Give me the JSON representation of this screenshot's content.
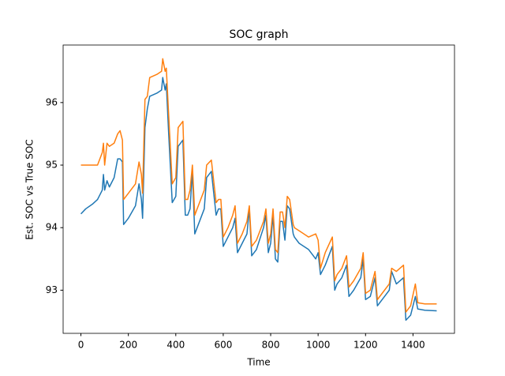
{
  "chart_data": {
    "type": "line",
    "title": "SOC graph",
    "x_label": "Time",
    "y_label": "Est. SOC vs True SOC",
    "x": [
      0,
      20,
      50,
      70,
      90,
      95,
      100,
      110,
      120,
      140,
      155,
      165,
      175,
      180,
      200,
      230,
      245,
      255,
      260,
      270,
      280,
      290,
      320,
      340,
      345,
      355,
      360,
      370,
      385,
      400,
      410,
      430,
      440,
      450,
      460,
      470,
      480,
      490,
      520,
      530,
      550,
      570,
      580,
      590,
      600,
      620,
      640,
      650,
      660,
      680,
      700,
      710,
      720,
      740,
      770,
      780,
      790,
      800,
      810,
      820,
      830,
      840,
      850,
      860,
      870,
      880,
      895,
      900,
      920,
      960,
      990,
      1000,
      1010,
      1030,
      1060,
      1070,
      1080,
      1100,
      1120,
      1130,
      1150,
      1180,
      1190,
      1200,
      1220,
      1230,
      1240,
      1250,
      1280,
      1300,
      1310,
      1330,
      1360,
      1370,
      1390,
      1410,
      1420,
      1450,
      1500
    ],
    "series": [
      {
        "color": "#1f77b4",
        "values": [
          94.22,
          94.3,
          94.38,
          94.45,
          94.6,
          94.85,
          94.6,
          94.75,
          94.65,
          94.8,
          95.1,
          95.1,
          95.05,
          94.05,
          94.15,
          94.35,
          94.7,
          94.45,
          94.15,
          95.6,
          95.9,
          96.1,
          96.15,
          96.2,
          96.4,
          96.2,
          96.3,
          95.5,
          94.4,
          94.5,
          95.3,
          95.4,
          94.2,
          94.2,
          94.3,
          94.9,
          93.9,
          94.0,
          94.3,
          94.8,
          94.9,
          94.2,
          94.3,
          94.3,
          93.7,
          93.85,
          94.0,
          94.15,
          93.6,
          93.75,
          93.9,
          94.3,
          93.55,
          93.65,
          94.0,
          94.2,
          93.6,
          93.75,
          94.2,
          93.5,
          93.45,
          94.1,
          94.1,
          93.8,
          94.35,
          94.3,
          93.9,
          93.85,
          93.75,
          93.65,
          93.5,
          93.6,
          93.25,
          93.4,
          93.7,
          93.0,
          93.1,
          93.2,
          93.4,
          92.9,
          93.0,
          93.2,
          93.5,
          92.85,
          92.9,
          93.05,
          93.2,
          92.75,
          92.9,
          93.0,
          93.3,
          93.1,
          93.2,
          92.52,
          92.6,
          92.9,
          92.7,
          92.68,
          92.67
        ]
      },
      {
        "color": "#ff7f0e",
        "values": [
          95.0,
          95.0,
          95.0,
          95.0,
          95.2,
          95.35,
          95.0,
          95.35,
          95.3,
          95.35,
          95.5,
          95.55,
          95.4,
          94.45,
          94.55,
          94.7,
          95.05,
          94.85,
          94.55,
          96.05,
          96.1,
          96.4,
          96.45,
          96.5,
          96.7,
          96.5,
          96.55,
          95.8,
          94.7,
          94.8,
          95.6,
          95.7,
          94.45,
          94.45,
          94.6,
          95.0,
          94.2,
          94.3,
          94.6,
          95.0,
          95.08,
          94.4,
          94.45,
          94.45,
          93.85,
          94.0,
          94.2,
          94.35,
          93.75,
          93.9,
          94.1,
          94.35,
          93.7,
          93.8,
          94.1,
          94.3,
          93.75,
          93.9,
          94.3,
          93.65,
          93.6,
          94.25,
          94.25,
          94.0,
          94.5,
          94.45,
          94.05,
          94.0,
          93.95,
          93.85,
          93.9,
          93.8,
          93.35,
          93.6,
          93.85,
          93.15,
          93.25,
          93.35,
          93.55,
          93.05,
          93.15,
          93.35,
          93.6,
          92.95,
          93.0,
          93.15,
          93.3,
          92.85,
          93.0,
          93.1,
          93.35,
          93.3,
          93.4,
          92.65,
          92.75,
          93.1,
          92.8,
          92.78,
          92.78
        ]
      }
    ],
    "xlim": [
      -75,
      1575
    ],
    "xticks": [
      0,
      200,
      400,
      600,
      800,
      1000,
      1200,
      1400
    ],
    "ylim": [
      92.31,
      96.92
    ],
    "yticks": [
      93,
      94,
      95,
      96
    ],
    "grid": false
  }
}
